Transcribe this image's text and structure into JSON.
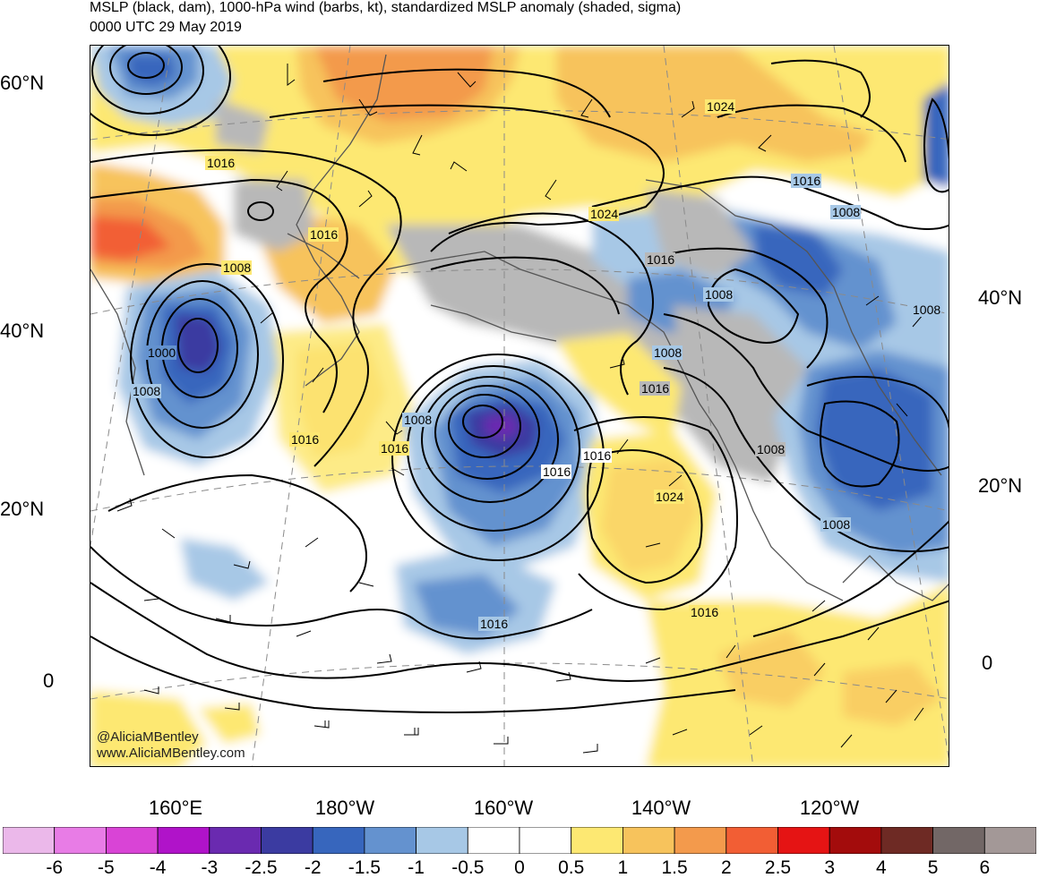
{
  "header": {
    "title": "MSLP (black, dam), 1000-hPa wind (barbs, kt), standardized MSLP anomaly (shaded, sigma)",
    "valid_time": "0000 UTC 29 May 2019"
  },
  "map": {
    "lat_labels_left": [
      "60°N",
      "40°N",
      "20°N",
      "0"
    ],
    "lat_labels_right": [
      "40°N",
      "20°N",
      "0"
    ],
    "lon_labels": [
      "160°E",
      "180°W",
      "160°W",
      "140°W",
      "120°W"
    ],
    "contour_labels": [
      "1016",
      "1016",
      "1008",
      "1000",
      "1008",
      "1016",
      "1008",
      "1016",
      "1016",
      "1024",
      "1016",
      "1008",
      "1008",
      "1016",
      "1024",
      "1016",
      "1016",
      "1024",
      "1016",
      "1008",
      "1008",
      "1008",
      "1008",
      "1016"
    ],
    "credit": [
      "@AliciaMBentley",
      "www.AliciaMBentley.com"
    ]
  },
  "colorbar": {
    "labels": [
      "-6",
      "-5",
      "-4",
      "-3",
      "-2.5",
      "-2",
      "-1.5",
      "-1",
      "-0.5",
      "0",
      "0.5",
      "1",
      "1.5",
      "2",
      "2.5",
      "3",
      "4",
      "5",
      "6"
    ],
    "colors": [
      "#ebb8ea",
      "#e87ce6",
      "#d944d6",
      "#b013c9",
      "#6a2ab0",
      "#3b3ba1",
      "#3766bd",
      "#6492cf",
      "#a7c8e6",
      "#ffffff",
      "#ffffff",
      "#fde872",
      "#f7c35c",
      "#f39a4c",
      "#f25e34",
      "#e51414",
      "#a30c0c",
      "#6e2a24",
      "#726766",
      "#a39897"
    ]
  },
  "colors": {
    "land": "#b8b8b8",
    "contour": "#000000",
    "coast": "#555555",
    "grid": "#8a8a8a"
  }
}
